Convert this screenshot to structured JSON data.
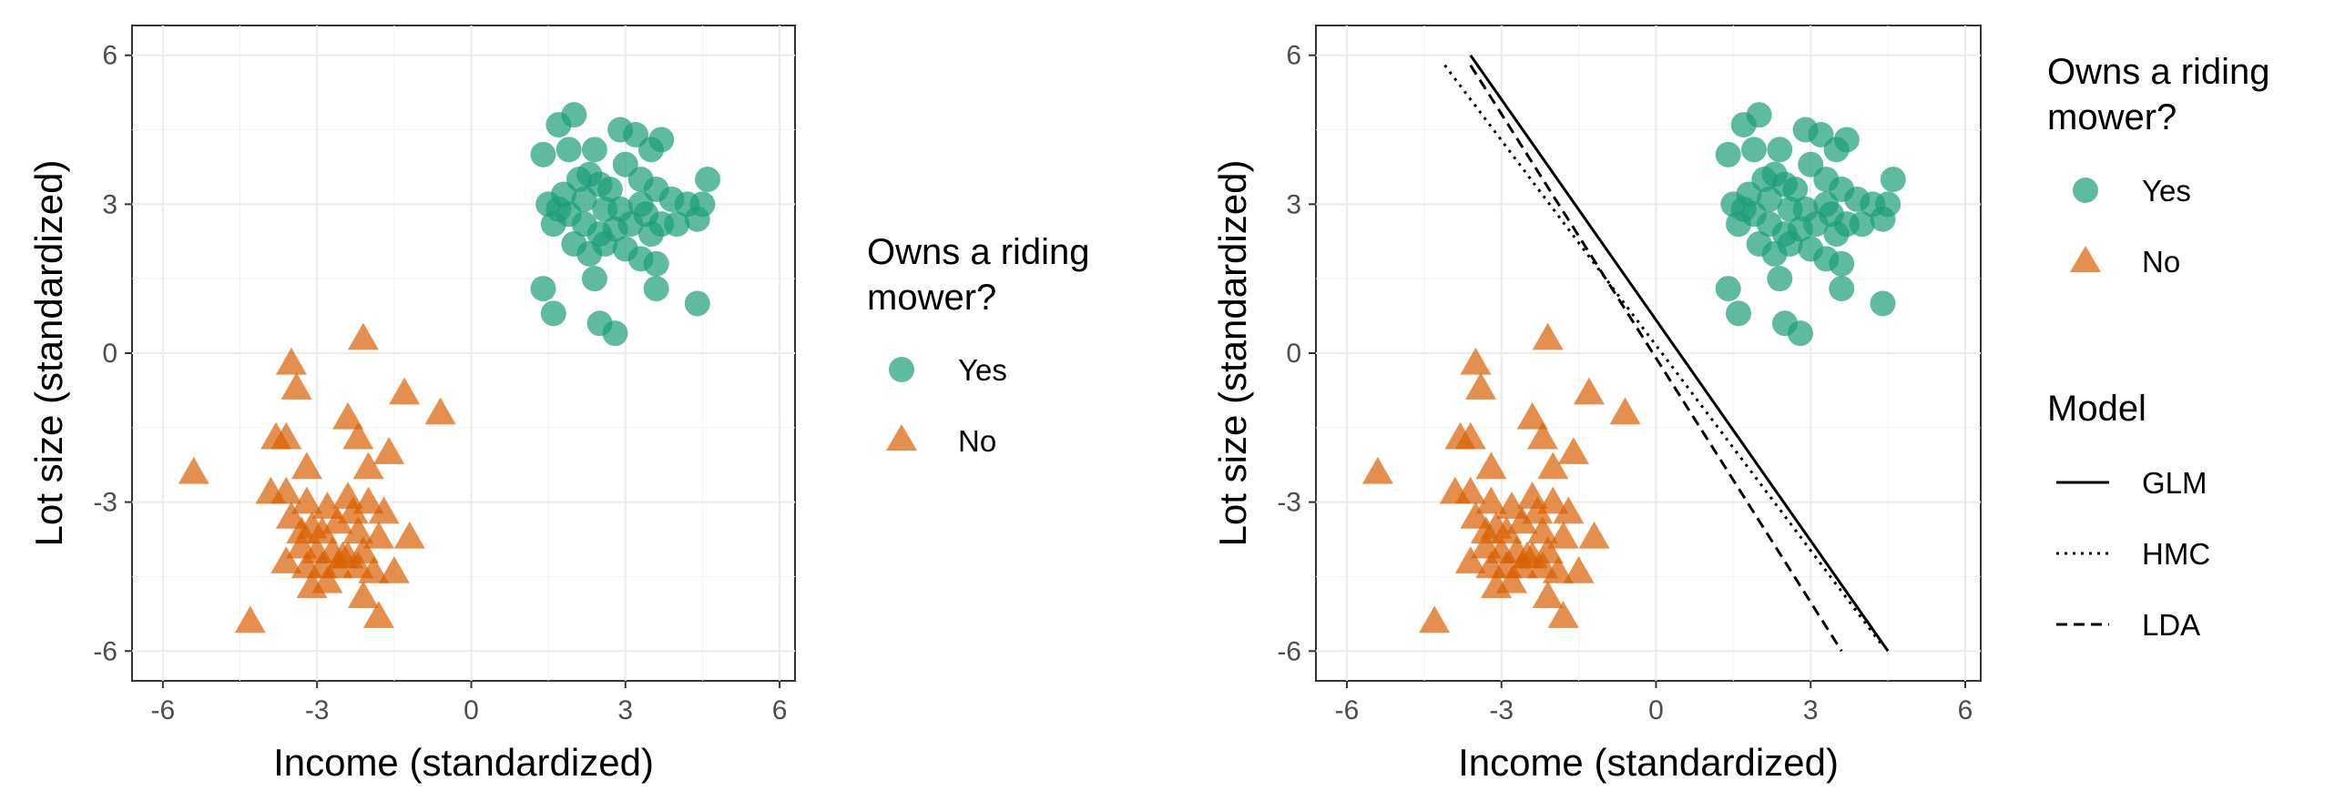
{
  "chart_data": [
    {
      "type": "scatter",
      "xlabel": "Income (standardized)",
      "ylabel": "Lot size (standardized)",
      "xlim": [
        -6.6,
        6.3
      ],
      "ylim": [
        -6.6,
        6.6
      ],
      "xticks": [
        "-6",
        "-3",
        "0",
        "3",
        "6"
      ],
      "yticks": [
        "-6",
        "-3",
        "0",
        "3",
        "6"
      ],
      "grid": true,
      "legend": {
        "placement": "right",
        "title": "Owns a riding mower?",
        "title_lines": [
          "Owns a riding",
          "mower?"
        ],
        "entries": [
          {
            "label": "Yes",
            "shape": "circle",
            "color": "#1b9e77"
          },
          {
            "label": "No",
            "shape": "triangle",
            "color": "#d95f02"
          }
        ]
      },
      "series": [
        {
          "name": "Yes",
          "shape": "circle",
          "color": "#1b9e77",
          "points": [
            [
              1.4,
              4.0
            ],
            [
              1.7,
              4.6
            ],
            [
              2.0,
              4.8
            ],
            [
              1.9,
              4.1
            ],
            [
              2.4,
              4.1
            ],
            [
              2.9,
              4.5
            ],
            [
              3.2,
              4.4
            ],
            [
              3.5,
              4.1
            ],
            [
              3.7,
              4.3
            ],
            [
              1.5,
              3.0
            ],
            [
              1.8,
              3.2
            ],
            [
              2.1,
              3.5
            ],
            [
              2.3,
              3.6
            ],
            [
              2.5,
              3.4
            ],
            [
              2.7,
              3.3
            ],
            [
              3.0,
              3.8
            ],
            [
              3.3,
              3.5
            ],
            [
              3.6,
              3.3
            ],
            [
              3.9,
              3.1
            ],
            [
              4.2,
              3.0
            ],
            [
              4.6,
              3.5
            ],
            [
              1.6,
              2.6
            ],
            [
              1.9,
              2.8
            ],
            [
              2.2,
              2.6
            ],
            [
              2.5,
              2.4
            ],
            [
              2.8,
              2.5
            ],
            [
              3.1,
              2.6
            ],
            [
              3.4,
              2.8
            ],
            [
              3.7,
              2.6
            ],
            [
              4.4,
              2.7
            ],
            [
              2.0,
              2.2
            ],
            [
              2.3,
              2.0
            ],
            [
              2.6,
              2.2
            ],
            [
              3.0,
              2.1
            ],
            [
              3.3,
              1.9
            ],
            [
              3.6,
              1.8
            ],
            [
              2.4,
              1.5
            ],
            [
              3.6,
              1.3
            ],
            [
              1.4,
              1.3
            ],
            [
              1.6,
              0.8
            ],
            [
              2.5,
              0.6
            ],
            [
              2.8,
              0.4
            ],
            [
              4.4,
              1.0
            ],
            [
              4.5,
              3.0
            ],
            [
              2.9,
              2.9
            ],
            [
              2.2,
              3.1
            ],
            [
              1.7,
              2.9
            ],
            [
              3.3,
              3.0
            ],
            [
              4.0,
              2.6
            ],
            [
              3.5,
              2.4
            ],
            [
              2.6,
              2.9
            ]
          ]
        },
        {
          "name": "No",
          "shape": "triangle",
          "color": "#d95f02",
          "points": [
            [
              -3.5,
              -0.2
            ],
            [
              -3.4,
              -0.7
            ],
            [
              -2.1,
              0.3
            ],
            [
              -1.3,
              -0.8
            ],
            [
              -0.6,
              -1.2
            ],
            [
              -2.4,
              -1.3
            ],
            [
              -3.8,
              -1.7
            ],
            [
              -3.6,
              -1.7
            ],
            [
              -2.2,
              -1.7
            ],
            [
              -1.6,
              -2.0
            ],
            [
              -3.2,
              -2.3
            ],
            [
              -2.0,
              -2.3
            ],
            [
              -5.4,
              -2.4
            ],
            [
              -3.9,
              -2.8
            ],
            [
              -3.6,
              -2.8
            ],
            [
              -3.2,
              -3.0
            ],
            [
              -2.8,
              -3.1
            ],
            [
              -2.4,
              -2.9
            ],
            [
              -2.0,
              -3.0
            ],
            [
              -1.7,
              -3.2
            ],
            [
              -3.5,
              -3.3
            ],
            [
              -3.1,
              -3.5
            ],
            [
              -2.9,
              -3.6
            ],
            [
              -2.6,
              -3.4
            ],
            [
              -2.2,
              -3.6
            ],
            [
              -1.8,
              -3.7
            ],
            [
              -1.2,
              -3.7
            ],
            [
              -3.3,
              -3.9
            ],
            [
              -3.0,
              -4.0
            ],
            [
              -2.7,
              -4.0
            ],
            [
              -2.4,
              -4.1
            ],
            [
              -2.1,
              -4.0
            ],
            [
              -3.6,
              -4.2
            ],
            [
              -3.2,
              -4.3
            ],
            [
              -2.9,
              -4.3
            ],
            [
              -2.6,
              -4.3
            ],
            [
              -2.2,
              -4.3
            ],
            [
              -1.9,
              -4.4
            ],
            [
              -1.5,
              -4.4
            ],
            [
              -3.1,
              -4.7
            ],
            [
              -2.8,
              -4.6
            ],
            [
              -2.1,
              -4.9
            ],
            [
              -1.8,
              -5.3
            ],
            [
              -4.3,
              -5.4
            ],
            [
              -2.5,
              -4.1
            ],
            [
              -3.3,
              -3.6
            ],
            [
              -2.3,
              -3.2
            ]
          ]
        }
      ]
    },
    {
      "type": "scatter",
      "xlabel": "Income (standardized)",
      "ylabel": "Lot size (standardized)",
      "xlim": [
        -6.6,
        6.3
      ],
      "ylim": [
        -6.6,
        6.6
      ],
      "xticks": [
        "-6",
        "-3",
        "0",
        "3",
        "6"
      ],
      "yticks": [
        "-6",
        "-3",
        "0",
        "3",
        "6"
      ],
      "grid": true,
      "legend": {
        "placement": "right",
        "title": "Owns a riding mower?",
        "title_lines": [
          "Owns a riding",
          "mower?"
        ],
        "entries": [
          {
            "label": "Yes",
            "shape": "circle",
            "color": "#1b9e77"
          },
          {
            "label": "No",
            "shape": "triangle",
            "color": "#d95f02"
          }
        ]
      },
      "model_legend": {
        "title": "Model",
        "entries": [
          {
            "label": "GLM",
            "dash": "solid"
          },
          {
            "label": "HMC",
            "dash": "dotted"
          },
          {
            "label": "LDA",
            "dash": "dashed"
          }
        ]
      },
      "lines": [
        {
          "name": "GLM",
          "dash": "solid",
          "points": [
            [
              -3.6,
              6.0
            ],
            [
              4.5,
              -6.0
            ]
          ]
        },
        {
          "name": "HMC",
          "dash": "dotted",
          "points": [
            [
              -4.1,
              5.8
            ],
            [
              4.4,
              -5.9
            ]
          ]
        },
        {
          "name": "LDA",
          "dash": "dashed",
          "points": [
            [
              -3.6,
              5.8
            ],
            [
              3.6,
              -6.0
            ]
          ]
        }
      ],
      "series": [
        {
          "name": "Yes",
          "shape": "circle",
          "color": "#1b9e77",
          "points": [
            [
              1.4,
              4.0
            ],
            [
              1.7,
              4.6
            ],
            [
              2.0,
              4.8
            ],
            [
              1.9,
              4.1
            ],
            [
              2.4,
              4.1
            ],
            [
              2.9,
              4.5
            ],
            [
              3.2,
              4.4
            ],
            [
              3.5,
              4.1
            ],
            [
              3.7,
              4.3
            ],
            [
              1.5,
              3.0
            ],
            [
              1.8,
              3.2
            ],
            [
              2.1,
              3.5
            ],
            [
              2.3,
              3.6
            ],
            [
              2.5,
              3.4
            ],
            [
              2.7,
              3.3
            ],
            [
              3.0,
              3.8
            ],
            [
              3.3,
              3.5
            ],
            [
              3.6,
              3.3
            ],
            [
              3.9,
              3.1
            ],
            [
              4.2,
              3.0
            ],
            [
              4.6,
              3.5
            ],
            [
              1.6,
              2.6
            ],
            [
              1.9,
              2.8
            ],
            [
              2.2,
              2.6
            ],
            [
              2.5,
              2.4
            ],
            [
              2.8,
              2.5
            ],
            [
              3.1,
              2.6
            ],
            [
              3.4,
              2.8
            ],
            [
              3.7,
              2.6
            ],
            [
              4.4,
              2.7
            ],
            [
              2.0,
              2.2
            ],
            [
              2.3,
              2.0
            ],
            [
              2.6,
              2.2
            ],
            [
              3.0,
              2.1
            ],
            [
              3.3,
              1.9
            ],
            [
              3.6,
              1.8
            ],
            [
              2.4,
              1.5
            ],
            [
              3.6,
              1.3
            ],
            [
              1.4,
              1.3
            ],
            [
              1.6,
              0.8
            ],
            [
              2.5,
              0.6
            ],
            [
              2.8,
              0.4
            ],
            [
              4.4,
              1.0
            ],
            [
              4.5,
              3.0
            ],
            [
              2.9,
              2.9
            ],
            [
              2.2,
              3.1
            ],
            [
              1.7,
              2.9
            ],
            [
              3.3,
              3.0
            ],
            [
              4.0,
              2.6
            ],
            [
              3.5,
              2.4
            ],
            [
              2.6,
              2.9
            ]
          ]
        },
        {
          "name": "No",
          "shape": "triangle",
          "color": "#d95f02",
          "points": [
            [
              -3.5,
              -0.2
            ],
            [
              -3.4,
              -0.7
            ],
            [
              -2.1,
              0.3
            ],
            [
              -1.3,
              -0.8
            ],
            [
              -0.6,
              -1.2
            ],
            [
              -2.4,
              -1.3
            ],
            [
              -3.8,
              -1.7
            ],
            [
              -3.6,
              -1.7
            ],
            [
              -2.2,
              -1.7
            ],
            [
              -1.6,
              -2.0
            ],
            [
              -3.2,
              -2.3
            ],
            [
              -2.0,
              -2.3
            ],
            [
              -5.4,
              -2.4
            ],
            [
              -3.9,
              -2.8
            ],
            [
              -3.6,
              -2.8
            ],
            [
              -3.2,
              -3.0
            ],
            [
              -2.8,
              -3.1
            ],
            [
              -2.4,
              -2.9
            ],
            [
              -2.0,
              -3.0
            ],
            [
              -1.7,
              -3.2
            ],
            [
              -3.5,
              -3.3
            ],
            [
              -3.1,
              -3.5
            ],
            [
              -2.9,
              -3.6
            ],
            [
              -2.6,
              -3.4
            ],
            [
              -2.2,
              -3.6
            ],
            [
              -1.8,
              -3.7
            ],
            [
              -1.2,
              -3.7
            ],
            [
              -3.3,
              -3.9
            ],
            [
              -3.0,
              -4.0
            ],
            [
              -2.7,
              -4.0
            ],
            [
              -2.4,
              -4.1
            ],
            [
              -2.1,
              -4.0
            ],
            [
              -3.6,
              -4.2
            ],
            [
              -3.2,
              -4.3
            ],
            [
              -2.9,
              -4.3
            ],
            [
              -2.6,
              -4.3
            ],
            [
              -2.2,
              -4.3
            ],
            [
              -1.9,
              -4.4
            ],
            [
              -1.5,
              -4.4
            ],
            [
              -3.1,
              -4.7
            ],
            [
              -2.8,
              -4.6
            ],
            [
              -2.1,
              -4.9
            ],
            [
              -1.8,
              -5.3
            ],
            [
              -4.3,
              -5.4
            ],
            [
              -2.5,
              -4.1
            ],
            [
              -3.3,
              -3.6
            ],
            [
              -2.3,
              -3.2
            ]
          ]
        }
      ]
    }
  ]
}
